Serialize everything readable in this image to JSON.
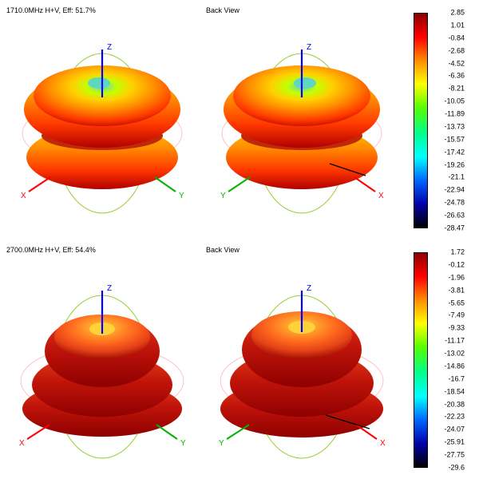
{
  "global": {
    "background_color": "#ffffff",
    "font_family": "Arial, sans-serif",
    "title_fontsize": 9,
    "label_fontsize": 9,
    "axis_colors": {
      "x": "#ff0000",
      "y": "#00b400",
      "z": "#0000ff"
    },
    "orbit_colors": {
      "xy": "#ffc0cb",
      "yz": "#9acd32",
      "zx": "#f5a9a9"
    },
    "axis_label_color": "#000000"
  },
  "rows": [
    {
      "title": "1710.0MHz H+V, Eff: 51.7%",
      "back_label": "Back View",
      "pattern": {
        "type": "3d_radiation_pattern",
        "shape": "bilobe_torus",
        "dominant_colors": [
          "#b20000",
          "#ff3700",
          "#ff8c00",
          "#ffd000",
          "#c4ff00",
          "#5eff5e"
        ],
        "top_depression_color": "#5ed6c0",
        "aspect": 1.0,
        "lobe_heights": [
          0.55,
          0.5
        ],
        "mid_squeeze": 0.78
      },
      "colorbar": {
        "gradient_hex": [
          "#8c0000",
          "#ff0000",
          "#ff8c00",
          "#ffff00",
          "#55ff00",
          "#00ff8c",
          "#00ffff",
          "#0066ff",
          "#0000aa",
          "#000000"
        ],
        "ticks": [
          2.85,
          1.01,
          -0.84,
          -2.68,
          -4.52,
          -6.36,
          -8.21,
          -10.05,
          -11.89,
          -13.73,
          -15.57,
          -17.42,
          -19.26,
          -21.1,
          -22.94,
          -24.78,
          -26.63,
          -28.47
        ],
        "min": -28.47,
        "max": 2.85
      }
    },
    {
      "title": "2700.0MHz H+V, Eff: 54.4%",
      "back_label": "Back View",
      "pattern": {
        "type": "3d_radiation_pattern",
        "shape": "tiered_dome",
        "dominant_colors": [
          "#8e0000",
          "#c1140a",
          "#e54217",
          "#ff6a1e",
          "#ff9c2a",
          "#ffd23a"
        ],
        "top_depression_color": "#ffd23a",
        "aspect": 1.0,
        "tiers": [
          0.62,
          0.82,
          1.0
        ],
        "tier_heights": [
          0.3,
          0.4,
          0.25
        ]
      },
      "colorbar": {
        "gradient_hex": [
          "#8c0000",
          "#ff0000",
          "#ff8c00",
          "#ffff00",
          "#55ff00",
          "#00ff8c",
          "#00ffff",
          "#0066ff",
          "#0000aa",
          "#000000"
        ],
        "ticks": [
          1.72,
          -0.12,
          -1.96,
          -3.81,
          -5.65,
          -7.49,
          -9.33,
          -11.17,
          -13.02,
          -14.86,
          -16.7,
          -18.54,
          -20.38,
          -22.23,
          -24.07,
          -25.91,
          -27.75,
          -29.6
        ],
        "min": -29.6,
        "max": 1.72
      }
    }
  ]
}
